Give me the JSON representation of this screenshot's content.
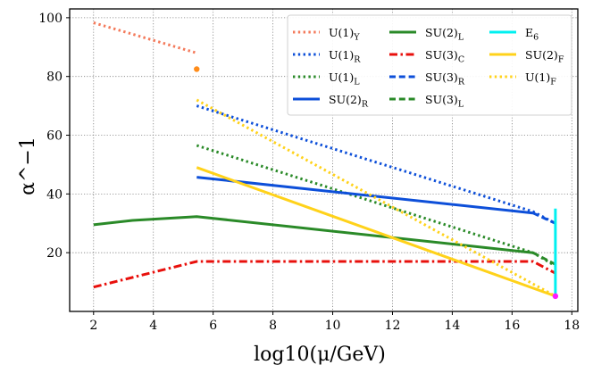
{
  "chart_data": {
    "type": "line",
    "title": "",
    "xlabel": "log10(μ/GeV)",
    "ylabel": "α^−1",
    "xlim": [
      1.2,
      18.2
    ],
    "ylim": [
      0,
      103
    ],
    "xticks": [
      2,
      4,
      6,
      8,
      10,
      12,
      14,
      16,
      18
    ],
    "yticks": [
      20,
      40,
      60,
      80,
      100
    ],
    "grid": true,
    "legend_position": "top-right",
    "series": [
      {
        "name": "U(1)_Y",
        "label": "U(1)",
        "sub": "Y",
        "color": "#f47a5b",
        "dash": "dot",
        "x": [
          2,
          5.45
        ],
        "y": [
          98.3,
          88.0
        ]
      },
      {
        "name": "U(1)_R",
        "label": "U(1)",
        "sub": "R",
        "color": "#0d4fd9",
        "dash": "dot",
        "x": [
          5.45,
          16.7,
          17.45
        ],
        "y": [
          70.0,
          34.0,
          30.0
        ]
      },
      {
        "name": "U(1)_L",
        "label": "U(1)",
        "sub": "L",
        "color": "#2a8a28",
        "dash": "dot",
        "x": [
          5.45,
          16.7,
          17.45
        ],
        "y": [
          56.5,
          20.0,
          15.5
        ]
      },
      {
        "name": "SU(2)_R",
        "label": "SU(2)",
        "sub": "R",
        "color": "#0d4fd9",
        "dash": "solid",
        "x": [
          5.45,
          16.7
        ],
        "y": [
          45.7,
          33.5
        ]
      },
      {
        "name": "SU(2)_L",
        "label": "SU(2)",
        "sub": "L",
        "color": "#2a8a28",
        "dash": "solid",
        "x": [
          2,
          3.3,
          5.45,
          16.7
        ],
        "y": [
          29.5,
          31.0,
          32.3,
          20.0
        ]
      },
      {
        "name": "SU(3)_C",
        "label": "SU(3)",
        "sub": "C",
        "color": "#e8100c",
        "dash": "dashdot",
        "x": [
          2,
          5.45,
          16.7,
          17.45
        ],
        "y": [
          8.3,
          17.0,
          17.0,
          13.0
        ]
      },
      {
        "name": "SU(3)_R",
        "label": "SU(3)",
        "sub": "R",
        "color": "#0d4fd9",
        "dash": "dash",
        "x": [
          16.7,
          17.45
        ],
        "y": [
          33.5,
          30.0
        ]
      },
      {
        "name": "SU(3)_L",
        "label": "SU(3)",
        "sub": "L",
        "color": "#2a8a28",
        "dash": "dash",
        "x": [
          16.7,
          17.45
        ],
        "y": [
          20.0,
          16.0
        ]
      },
      {
        "name": "E_6",
        "label": "E",
        "sub": "6",
        "color": "#00f0f0",
        "dash": "solid",
        "x": [
          17.45,
          17.45
        ],
        "y": [
          5.2,
          35.0
        ]
      },
      {
        "name": "SU(2)_F",
        "label": "SU(2)",
        "sub": "F",
        "color": "#ffd21a",
        "dash": "solid",
        "x": [
          5.45,
          17.45
        ],
        "y": [
          49.0,
          5.2
        ]
      },
      {
        "name": "U(1)_F",
        "label": "U(1)",
        "sub": "F",
        "color": "#ffd21a",
        "dash": "dot",
        "x": [
          5.45,
          17.45
        ],
        "y": [
          72.0,
          5.2
        ]
      }
    ],
    "points": [
      {
        "name": "orange-marker",
        "x": 5.45,
        "y": 82.5,
        "color": "#ff8c1a"
      },
      {
        "name": "magenta-marker",
        "x": 17.45,
        "y": 5.2,
        "color": "#ff1aff"
      }
    ]
  }
}
